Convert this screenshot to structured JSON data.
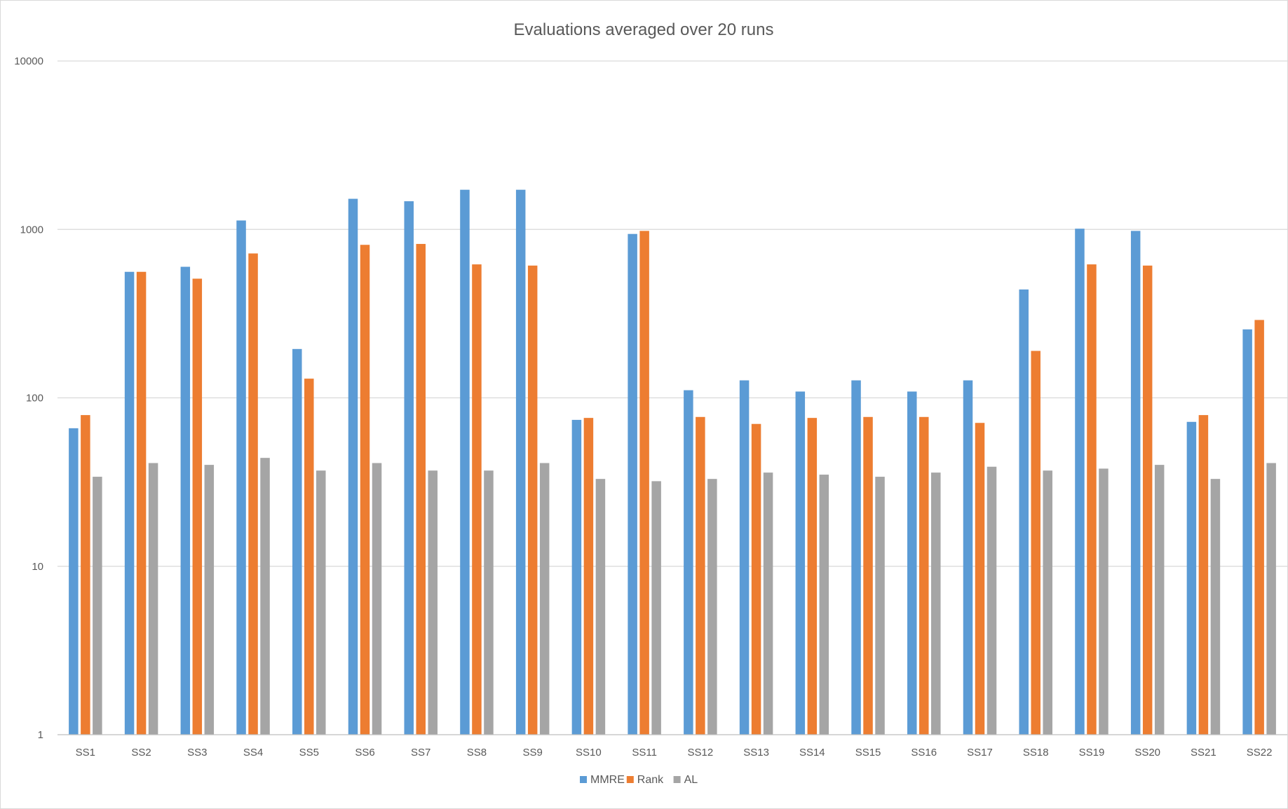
{
  "chart_data": {
    "type": "bar",
    "title": "Evaluations averaged over 20 runs",
    "xlabel": "",
    "ylabel": "",
    "yscale": "log",
    "ylim": [
      1,
      10000
    ],
    "yticks": [
      "1",
      "10",
      "100",
      "1000",
      "10000"
    ],
    "grid": true,
    "legend_position": "bottom",
    "categories": [
      "SS1",
      "SS2",
      "SS3",
      "SS4",
      "SS5",
      "SS6",
      "SS7",
      "SS8",
      "SS9",
      "SS10",
      "SS11",
      "SS12",
      "SS13",
      "SS14",
      "SS15",
      "SS16",
      "SS17",
      "SS18",
      "SS19",
      "SS20",
      "SS21",
      "SS22"
    ],
    "series": [
      {
        "name": "MMRE",
        "color": "#5b9bd5",
        "values": [
          66,
          560,
          600,
          1130,
          195,
          1520,
          1470,
          1720,
          1720,
          74,
          940,
          111,
          127,
          109,
          127,
          109,
          127,
          440,
          1010,
          980,
          72,
          255
        ]
      },
      {
        "name": "Rank",
        "color": "#ed7d31",
        "values": [
          79,
          560,
          510,
          720,
          130,
          810,
          820,
          620,
          610,
          76,
          980,
          77,
          70,
          76,
          77,
          77,
          71,
          190,
          620,
          610,
          79,
          290
        ]
      },
      {
        "name": "AL",
        "color": "#a5a5a5",
        "values": [
          34,
          41,
          40,
          44,
          37,
          41,
          37,
          37,
          41,
          33,
          32,
          33,
          36,
          35,
          34,
          36,
          39,
          37,
          38,
          40,
          33,
          41
        ]
      }
    ]
  }
}
